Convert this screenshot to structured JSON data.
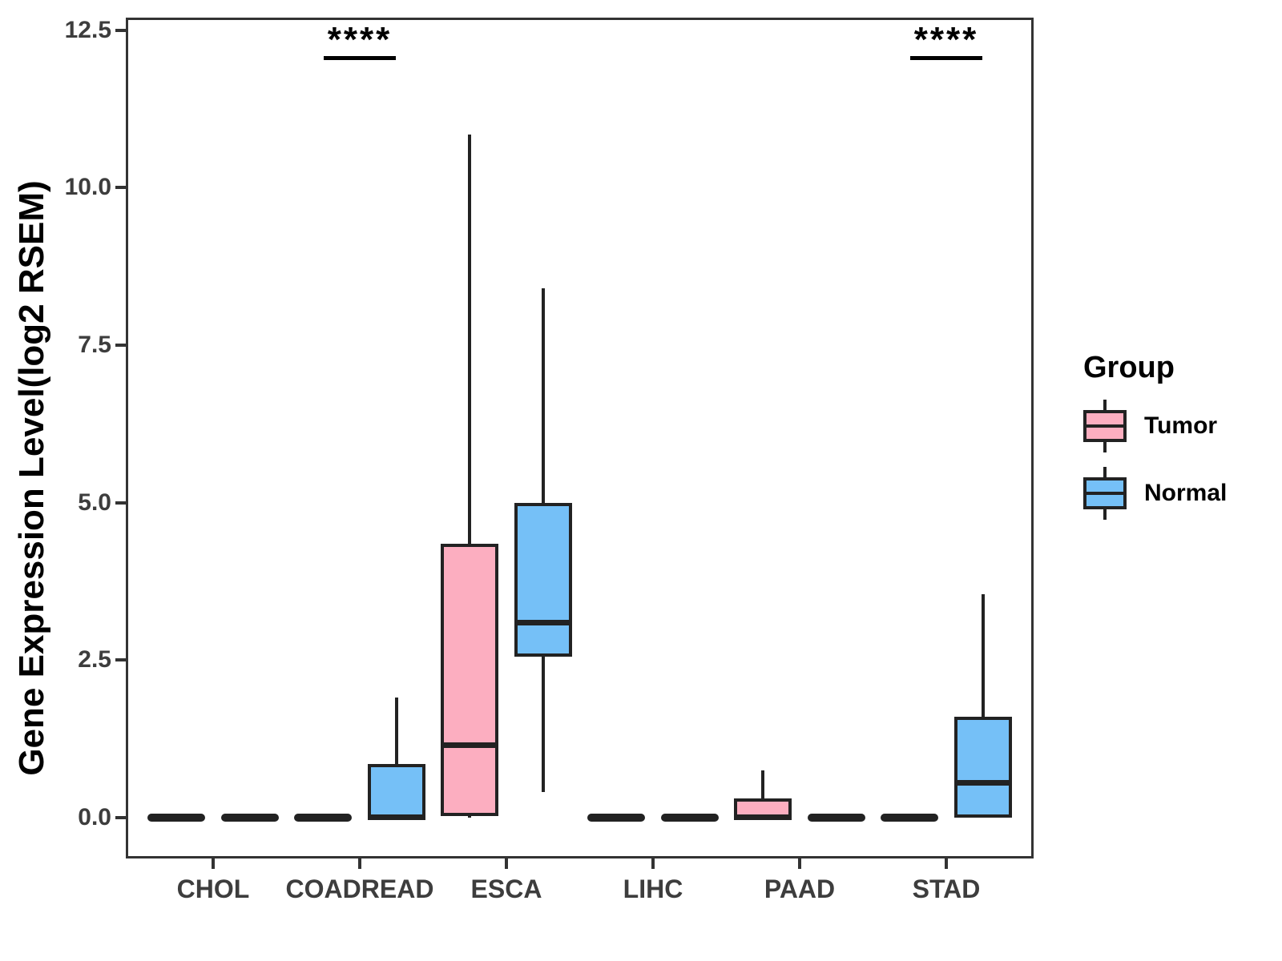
{
  "chart_data": {
    "type": "boxplot",
    "title": "",
    "xlabel": "",
    "ylabel": "Gene Expression Level(log2 RSEM)",
    "categories": [
      "CHOL",
      "COADREAD",
      "ESCA",
      "LIHC",
      "PAAD",
      "STAD"
    ],
    "yticks": [
      {
        "label": "0.0",
        "value": 0
      },
      {
        "label": "2.5",
        "value": 2.5
      },
      {
        "label": "5.0",
        "value": 5
      },
      {
        "label": "7.5",
        "value": 7.5
      },
      {
        "label": "10.0",
        "value": 10
      },
      {
        "label": "12.5",
        "value": 12.5
      }
    ],
    "ylim": [
      -0.65,
      12.7
    ],
    "grid": false,
    "stroke_color": "#222222",
    "legend": {
      "title": "Group",
      "position": "right"
    },
    "series": [
      {
        "name": "Tumor",
        "color": "#FCAEC0",
        "boxes": [
          {
            "category": "CHOL",
            "low": 0,
            "q1": 0,
            "median": 0,
            "q3": 0,
            "high": 0
          },
          {
            "category": "COADREAD",
            "low": 0,
            "q1": 0,
            "median": 0,
            "q3": 0,
            "high": 0
          },
          {
            "category": "ESCA",
            "low": 0,
            "q1": 0.02,
            "median": 1.15,
            "q3": 4.35,
            "high": 10.85
          },
          {
            "category": "LIHC",
            "low": 0,
            "q1": 0,
            "median": 0,
            "q3": 0,
            "high": 0
          },
          {
            "category": "PAAD",
            "low": 0,
            "q1": 0,
            "median": 0,
            "q3": 0.3,
            "high": 0.75
          },
          {
            "category": "STAD",
            "low": 0,
            "q1": 0,
            "median": 0,
            "q3": 0,
            "high": 0
          }
        ]
      },
      {
        "name": "Normal",
        "color": "#75C0F7",
        "boxes": [
          {
            "category": "CHOL",
            "low": 0,
            "q1": 0,
            "median": 0,
            "q3": 0,
            "high": 0
          },
          {
            "category": "COADREAD",
            "low": 0,
            "q1": 0,
            "median": 0,
            "q3": 0.85,
            "high": 1.9
          },
          {
            "category": "ESCA",
            "low": 0.4,
            "q1": 2.55,
            "median": 3.1,
            "q3": 5.0,
            "high": 8.4
          },
          {
            "category": "LIHC",
            "low": 0,
            "q1": 0,
            "median": 0,
            "q3": 0,
            "high": 0
          },
          {
            "category": "PAAD",
            "low": 0,
            "q1": 0,
            "median": 0,
            "q3": 0,
            "high": 0
          },
          {
            "category": "STAD",
            "low": 0,
            "q1": 0,
            "median": 0.55,
            "q3": 1.6,
            "high": 3.55
          }
        ]
      }
    ],
    "significance": [
      {
        "category": "COADREAD",
        "label": "****"
      },
      {
        "category": "STAD",
        "label": "****"
      }
    ]
  }
}
